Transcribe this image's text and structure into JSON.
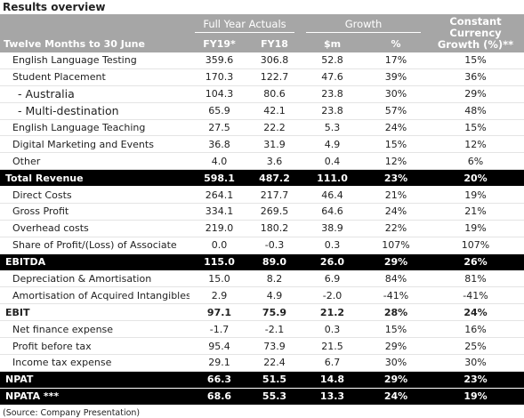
{
  "title": "Results overview",
  "header": {
    "groups": [
      "Full Year Actuals",
      "Growth",
      "Constant Currency Growth (%)**"
    ],
    "columns": [
      "Twelve Months to 30 June",
      "FY19*",
      "FY18",
      "$m",
      "%"
    ]
  },
  "table": {
    "rows": [
      [
        "English Language Testing",
        "359.6",
        "306.8",
        "52.8",
        "17%",
        "15%"
      ],
      [
        "Student Placement",
        "170.3",
        "122.7",
        "47.6",
        "39%",
        "36%"
      ],
      [
        "- Australia",
        "104.3",
        "80.6",
        "23.8",
        "30%",
        "29%"
      ],
      [
        "- Multi-destination",
        "65.9",
        "42.1",
        "23.8",
        "57%",
        "48%"
      ],
      [
        "English Language Teaching",
        "27.5",
        "22.2",
        "5.3",
        "24%",
        "15%"
      ],
      [
        "Digital Marketing and Events",
        "36.8",
        "31.9",
        "4.9",
        "15%",
        "12%"
      ],
      [
        "Other",
        "4.0",
        "3.6",
        "0.4",
        "12%",
        "6%"
      ],
      [
        "Total Revenue",
        "598.1",
        "487.2",
        "111.0",
        "23%",
        "20%"
      ],
      [
        "Direct Costs",
        "264.1",
        "217.7",
        "46.4",
        "21%",
        "19%"
      ],
      [
        "Gross Profit",
        "334.1",
        "269.5",
        "64.6",
        "24%",
        "21%"
      ],
      [
        "Overhead costs",
        "219.0",
        "180.2",
        "38.9",
        "22%",
        "19%"
      ],
      [
        "Share of Profit/(Loss) of Associate",
        "0.0",
        "-0.3",
        "0.3",
        "107%",
        "107%"
      ],
      [
        "EBITDA",
        "115.0",
        "89.0",
        "26.0",
        "29%",
        "26%"
      ],
      [
        "Depreciation & Amortisation",
        "15.0",
        "8.2",
        "6.9",
        "84%",
        "81%"
      ],
      [
        "Amortisation of Acquired Intangibles",
        "2.9",
        "4.9",
        "-2.0",
        "-41%",
        "-41%"
      ],
      [
        "EBIT",
        "97.1",
        "75.9",
        "21.2",
        "28%",
        "24%"
      ],
      [
        "Net finance expense",
        "-1.7",
        "-2.1",
        "0.3",
        "15%",
        "16%"
      ],
      [
        "Profit before tax",
        "95.4",
        "73.9",
        "21.5",
        "29%",
        "25%"
      ],
      [
        "Income tax expense",
        "29.1",
        "22.4",
        "6.7",
        "30%",
        "30%"
      ],
      [
        "NPAT",
        "66.3",
        "51.5",
        "14.8",
        "29%",
        "23%"
      ],
      [
        "NPATA ***",
        "68.6",
        "55.3",
        "13.3",
        "24%",
        "19%"
      ]
    ]
  },
  "source": "(Source: Company Presentation)"
}
